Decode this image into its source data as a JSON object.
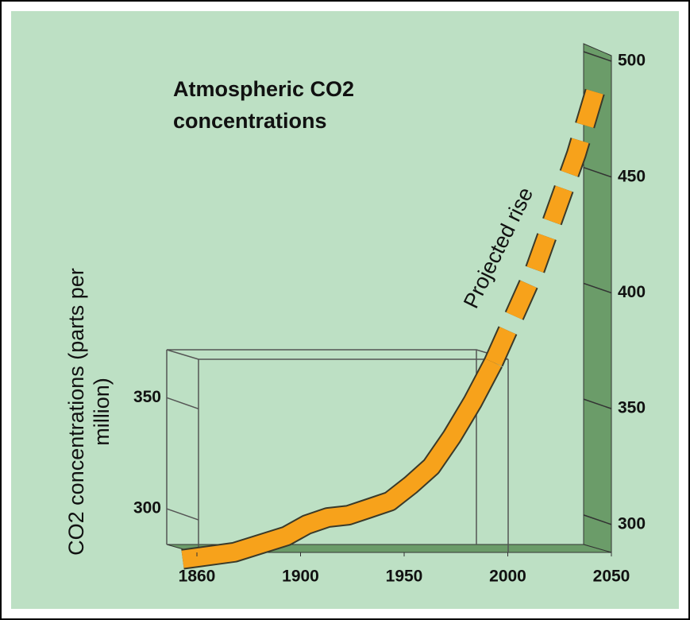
{
  "chart_data": {
    "type": "line",
    "title": "Atmospheric CO2 concentrations",
    "y_label": "CO2 concentrations (parts per million)",
    "annotation": "Projected rise",
    "xlim": [
      1860,
      2050
    ],
    "xticks": [
      1860,
      1900,
      1950,
      2000,
      2050
    ],
    "ylim": [
      290,
      500
    ],
    "yticks": [
      300,
      350,
      400,
      450,
      500
    ],
    "y2lim": [
      282.5,
      368
    ],
    "y2ticks": [
      300,
      350
    ],
    "series": [
      {
        "color": "#f7a21b",
        "x": [
          1860,
          1880,
          1900,
          1910,
          1920,
          1930,
          1940,
          1950,
          1960,
          1970,
          1980,
          1990,
          2000
        ],
        "values": [
          285,
          288,
          295,
          300,
          303,
          304,
          307,
          310,
          317,
          325,
          338,
          353,
          370
        ]
      },
      {
        "color": "#f7a21b",
        "dashed": true,
        "x": [
          2000,
          2010,
          2020,
          2030,
          2040,
          2050
        ],
        "values": [
          370,
          390,
          410,
          435,
          460,
          490
        ]
      }
    ]
  }
}
